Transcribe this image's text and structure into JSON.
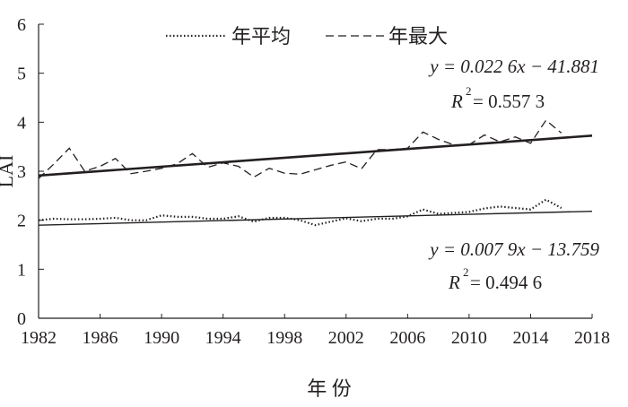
{
  "chart_data": {
    "type": "line",
    "xlabel": "年 份",
    "ylabel": "LAI",
    "xlim": [
      1982,
      2018
    ],
    "ylim": [
      0,
      6
    ],
    "x_ticks": [
      "1982",
      "1986",
      "1990",
      "1994",
      "1998",
      "2002",
      "2006",
      "2010",
      "2014",
      "2018"
    ],
    "y_ticks": [
      "0",
      "1",
      "2",
      "3",
      "4",
      "5",
      "6"
    ],
    "legend_position": "top",
    "grid": false,
    "x": [
      1982,
      1983,
      1984,
      1985,
      1986,
      1987,
      1988,
      1989,
      1990,
      1991,
      1992,
      1993,
      1994,
      1995,
      1996,
      1997,
      1998,
      1999,
      2000,
      2001,
      2002,
      2003,
      2004,
      2005,
      2006,
      2007,
      2008,
      2009,
      2010,
      2011,
      2012,
      2013,
      2014,
      2015,
      2016
    ],
    "series": [
      {
        "name": "年平均",
        "style": "dotted",
        "values": [
          2.0,
          2.03,
          2.02,
          2.02,
          2.03,
          2.05,
          2.0,
          2.0,
          2.1,
          2.07,
          2.07,
          2.03,
          2.03,
          2.08,
          1.97,
          2.05,
          2.05,
          2.0,
          1.9,
          1.97,
          2.04,
          1.98,
          2.03,
          2.03,
          2.08,
          2.22,
          2.13,
          2.15,
          2.17,
          2.24,
          2.28,
          2.25,
          2.22,
          2.42,
          2.25
        ]
      },
      {
        "name": "年最大",
        "style": "dashed",
        "values": [
          2.85,
          3.15,
          3.47,
          3.0,
          3.1,
          3.26,
          2.95,
          3.0,
          3.06,
          3.15,
          3.36,
          3.08,
          3.17,
          3.1,
          2.88,
          3.06,
          2.96,
          2.94,
          3.03,
          3.12,
          3.19,
          3.05,
          3.44,
          3.44,
          3.47,
          3.8,
          3.65,
          3.54,
          3.54,
          3.74,
          3.6,
          3.7,
          3.57,
          4.04,
          3.78
        ]
      }
    ],
    "trendlines": [
      {
        "series": "年最大",
        "slope": 0.0226,
        "intercept": -41.881,
        "equation": "y = 0.022 6x − 41.881",
        "r2_label": "R",
        "r2_value": " = 0.557 3"
      },
      {
        "series": "年平均",
        "slope": 0.0079,
        "intercept": -13.759,
        "equation": "y = 0.007 9x − 13.759",
        "r2_label": "R",
        "r2_value": " = 0.494 6"
      }
    ]
  }
}
